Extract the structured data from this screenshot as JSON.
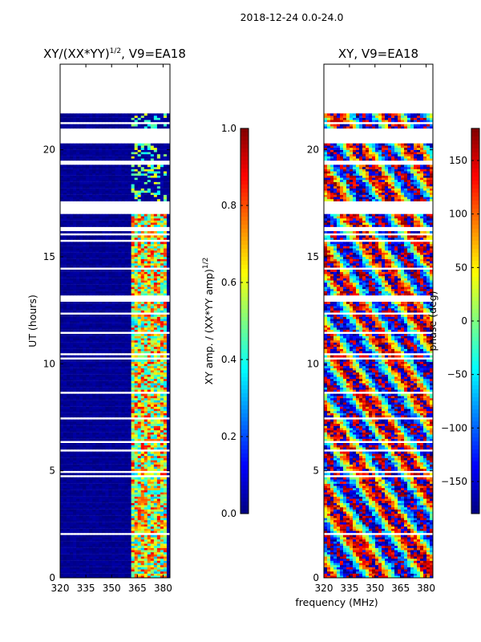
{
  "figure": {
    "suptitle": "2018-12-24 0.0-24.0",
    "shared_xlabel": "frequency (MHz)"
  },
  "chart_data": [
    {
      "type": "heatmap",
      "title": "XY/(XX*YY)",
      "title_sup": "1/2",
      "title_suffix": ", V9=EA18",
      "xlabel": "",
      "ylabel": "UT (hours)",
      "xlim": [
        320,
        384
      ],
      "ylim": [
        0,
        24
      ],
      "xticks": [
        320,
        335,
        350,
        365,
        380
      ],
      "yticks": [
        0,
        5,
        10,
        15,
        20
      ],
      "colormap": "jet",
      "colorbar": {
        "label": "XY amp. / (XX*YY amp)",
        "label_sup": "1/2",
        "range": [
          0.0,
          1.0
        ],
        "ticks": [
          "0.0",
          "0.2",
          "0.4",
          "0.6",
          "0.8",
          "1.0"
        ],
        "tick_values": [
          0.0,
          0.2,
          0.4,
          0.6,
          0.8,
          1.0
        ]
      },
      "data_coverage_hours": [
        0,
        21.8
      ],
      "bright_band_mhz": [
        362,
        382
      ]
    },
    {
      "type": "heatmap",
      "title": "XY, V9=EA18",
      "xlabel": "frequency (MHz)",
      "ylabel": "",
      "xlim": [
        320,
        384
      ],
      "ylim": [
        0,
        24
      ],
      "xticks": [
        320,
        335,
        350,
        365,
        380
      ],
      "yticks": [
        0,
        5,
        10,
        15,
        20
      ],
      "colormap": "jet",
      "colorbar": {
        "label": "phase (deg)",
        "range": [
          -180,
          180
        ],
        "ticks": [
          "150",
          "100",
          "50",
          "0",
          "−50",
          "−100",
          "−150"
        ],
        "tick_values": [
          150,
          100,
          50,
          0,
          -50,
          -100,
          -150
        ]
      },
      "data_coverage_hours": [
        0,
        21.8
      ]
    }
  ]
}
